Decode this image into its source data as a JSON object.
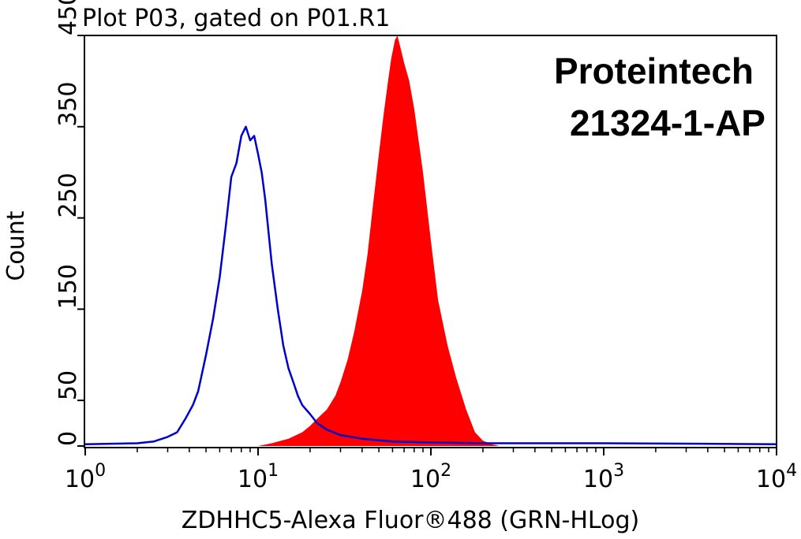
{
  "chart_data": {
    "type": "area",
    "title": "Plot P03, gated on P01.R1",
    "xlabel": "ZDHHC5-Alexa Fluor®488 (GRN-HLog)",
    "ylabel": "Count",
    "xscale": "log",
    "xlim": [
      1,
      10000
    ],
    "ylim": [
      0,
      450
    ],
    "x_ticks": [
      {
        "base": "10",
        "exp": "0",
        "value": 1
      },
      {
        "base": "10",
        "exp": "1",
        "value": 10
      },
      {
        "base": "10",
        "exp": "2",
        "value": 100
      },
      {
        "base": "10",
        "exp": "3",
        "value": 1000
      },
      {
        "base": "10",
        "exp": "4",
        "value": 10000
      }
    ],
    "y_ticks": [
      0,
      50,
      150,
      250,
      350,
      450
    ],
    "grid": false,
    "annotations": [
      "Proteintech",
      "21324-1-AP"
    ],
    "series": [
      {
        "style": "filled",
        "color": "#ff0000",
        "x": [
          1,
          10,
          12,
          15,
          18,
          20,
          22,
          25,
          28,
          30,
          33,
          36,
          40,
          43,
          46,
          50,
          53,
          56,
          59,
          62,
          64,
          66,
          70,
          75,
          80,
          90,
          100,
          110,
          125,
          140,
          160,
          180,
          200,
          225,
          250,
          300,
          1000,
          10000
        ],
        "y": [
          0,
          0,
          3,
          8,
          15,
          22,
          30,
          40,
          55,
          70,
          95,
          125,
          170,
          210,
          260,
          320,
          360,
          395,
          425,
          445,
          450,
          440,
          420,
          400,
          370,
          300,
          225,
          160,
          110,
          75,
          40,
          15,
          6,
          2,
          0,
          0,
          0,
          0
        ]
      },
      {
        "style": "line",
        "color": "#0000cc",
        "x": [
          1,
          2,
          2.5,
          3,
          3.4,
          3.8,
          4.2,
          4.5,
          5,
          5.5,
          6,
          6.5,
          7,
          7.5,
          8,
          8.5,
          9,
          9.5,
          10,
          10.5,
          11,
          12,
          13,
          14,
          15,
          16,
          17,
          18,
          20,
          22,
          25,
          30,
          40,
          60,
          100,
          200,
          1000,
          10000
        ],
        "y": [
          2,
          3,
          5,
          10,
          15,
          30,
          45,
          60,
          100,
          140,
          185,
          240,
          295,
          310,
          340,
          350,
          335,
          340,
          320,
          300,
          270,
          200,
          150,
          110,
          85,
          70,
          55,
          45,
          35,
          25,
          18,
          12,
          8,
          5,
          4,
          3,
          3,
          2
        ]
      }
    ]
  }
}
